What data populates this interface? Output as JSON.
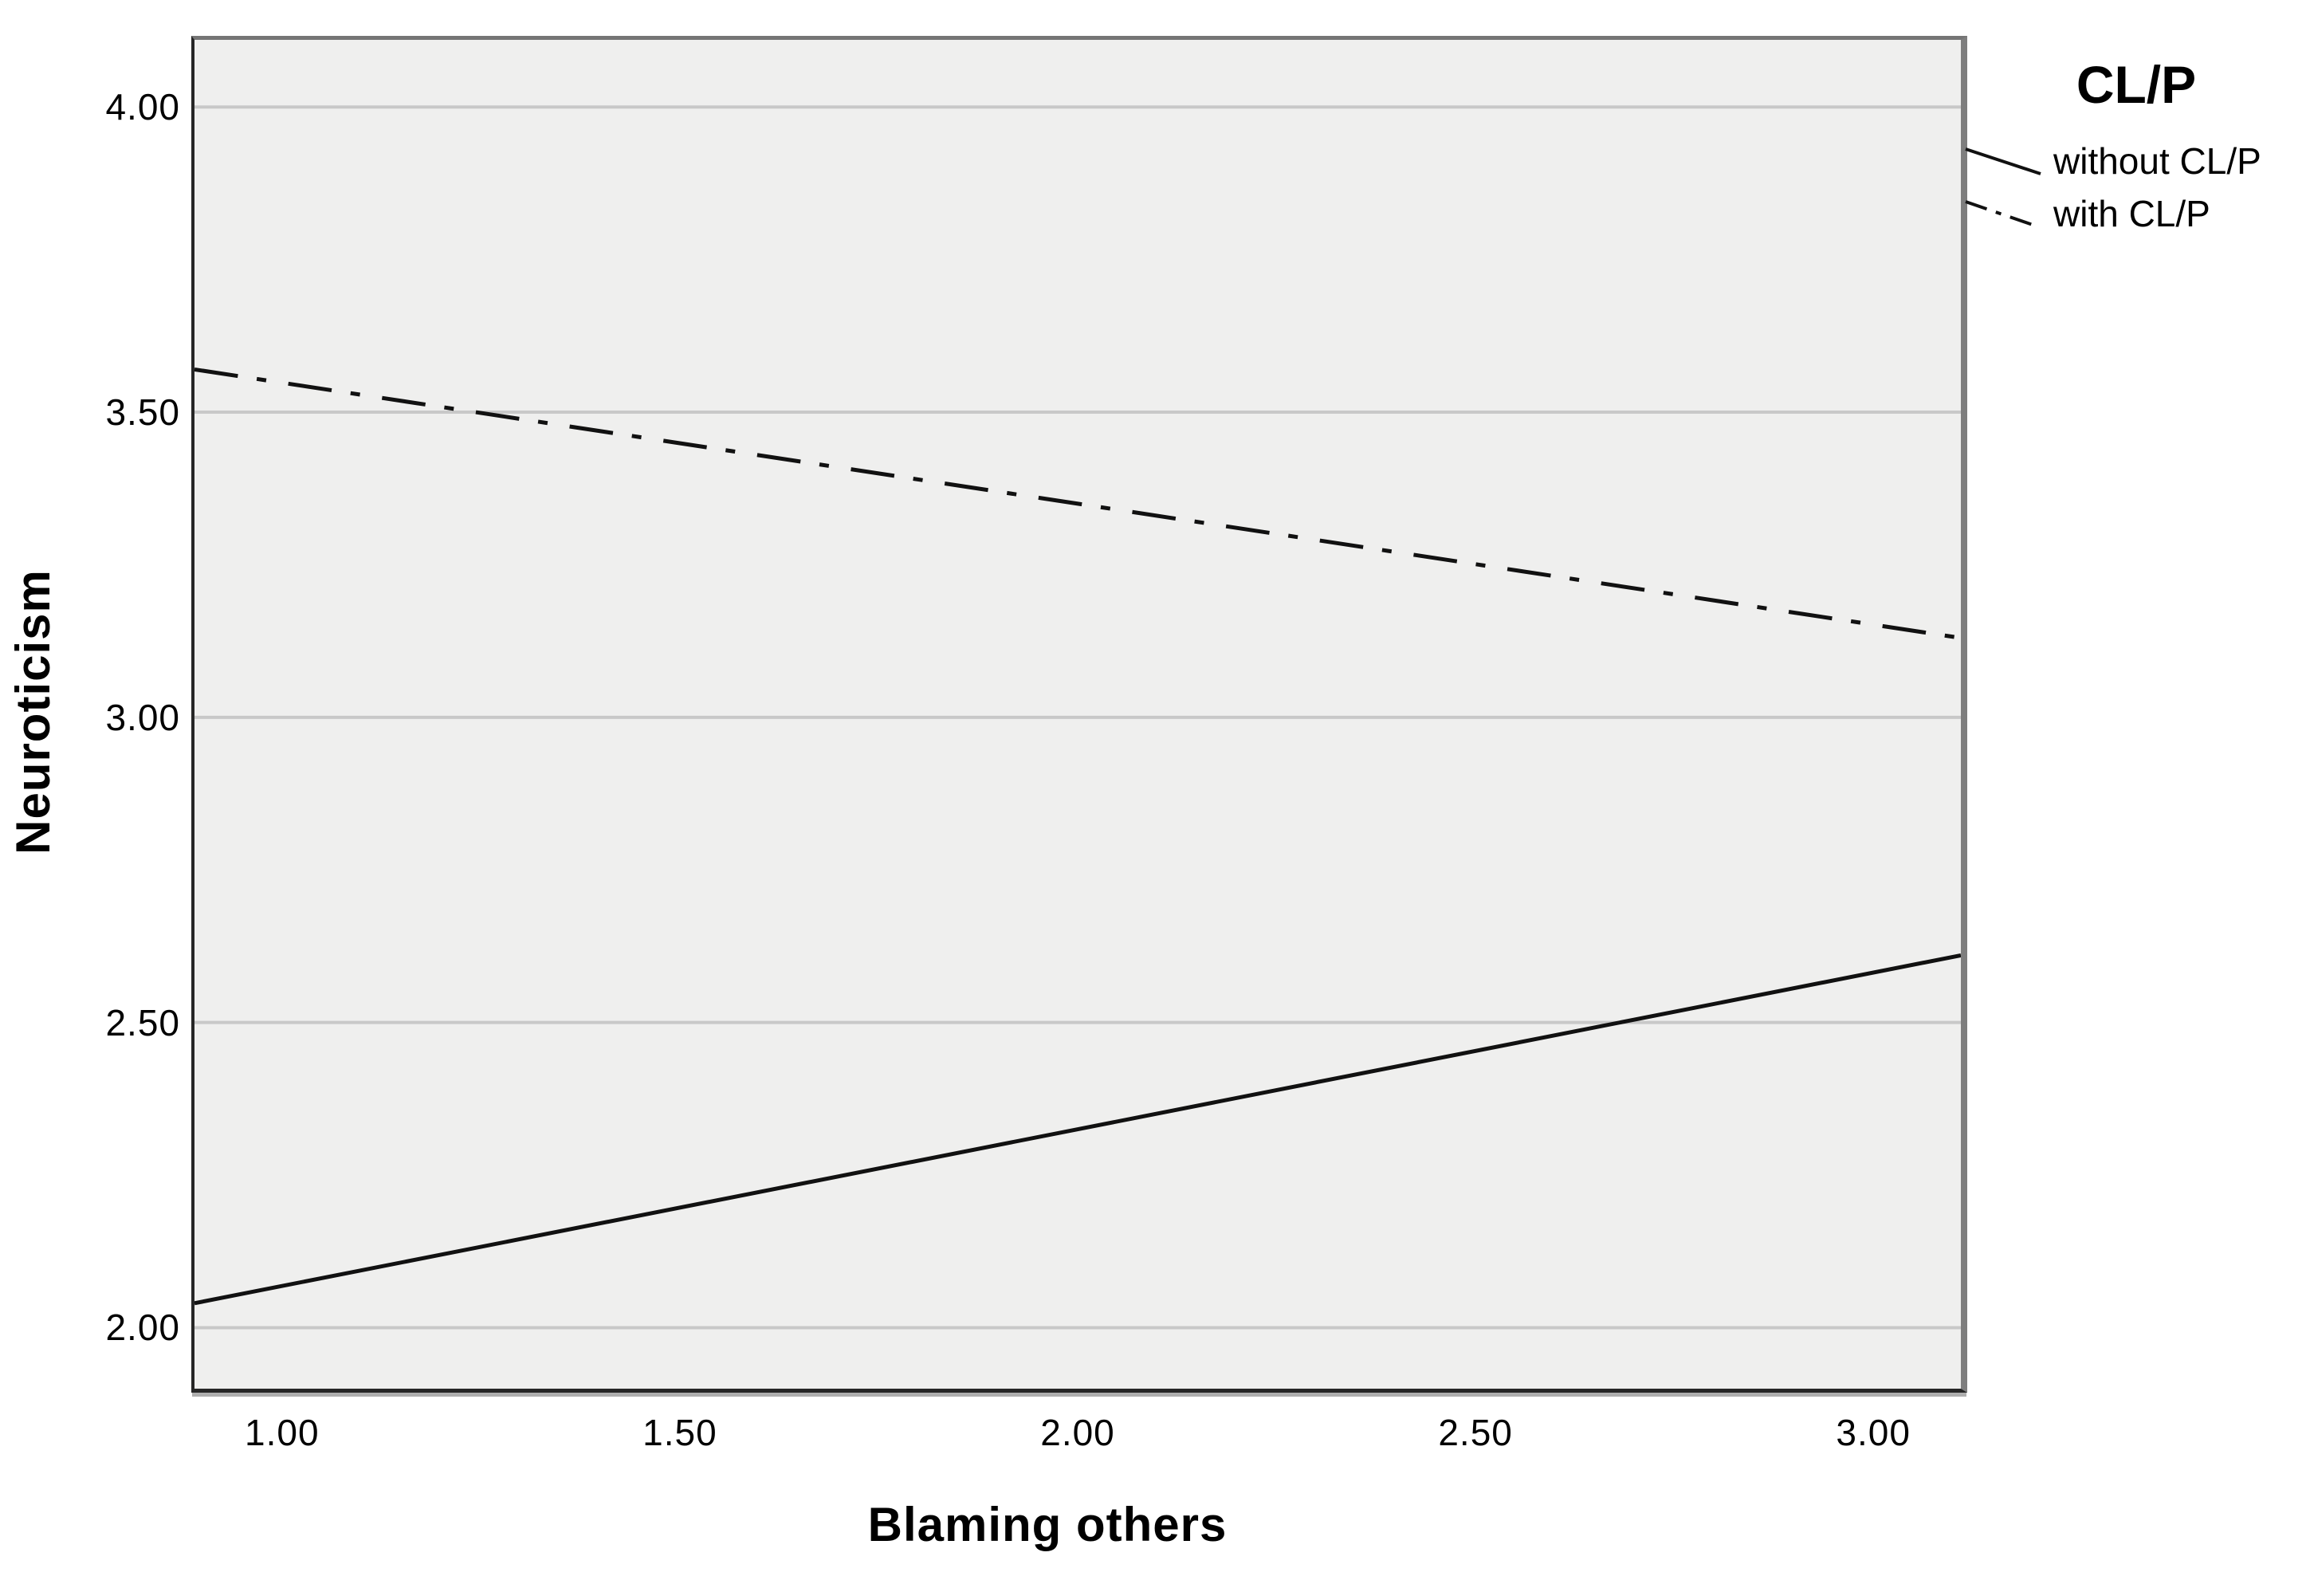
{
  "chart_data": {
    "type": "line",
    "title": "",
    "xlabel": "Blaming others",
    "ylabel": "Neuroticism",
    "xlim": [
      0.89,
      3.11
    ],
    "ylim": [
      1.9,
      4.11
    ],
    "x_tick_values": [
      1.0,
      1.5,
      2.0,
      2.5,
      3.0
    ],
    "x_tick_labels": [
      "1.00",
      "1.50",
      "2.00",
      "2.50",
      "3.00"
    ],
    "y_tick_values": [
      2.0,
      2.5,
      3.0,
      3.5,
      4.0
    ],
    "y_tick_labels": [
      "2.00",
      "2.50",
      "3.00",
      "3.50",
      "4.00"
    ],
    "grid": "horizontal-only",
    "plot_background": "#efefee",
    "gridline_color": "#c8c8c8",
    "line_color": "#111111",
    "series": [
      {
        "name": "without CL/P",
        "style": "solid",
        "points": [
          {
            "x": 0.89,
            "y": 2.04
          },
          {
            "x": 3.11,
            "y": 2.61
          }
        ]
      },
      {
        "name": "with CL/P",
        "style": "dash-dot",
        "points": [
          {
            "x": 0.89,
            "y": 3.57
          },
          {
            "x": 3.11,
            "y": 3.13
          }
        ]
      }
    ],
    "legend": {
      "title": "CL/P",
      "position": "top-right",
      "entries": [
        {
          "label": "without CL/P",
          "style": "solid"
        },
        {
          "label": "with CL/P",
          "style": "dash-dot"
        }
      ]
    }
  }
}
